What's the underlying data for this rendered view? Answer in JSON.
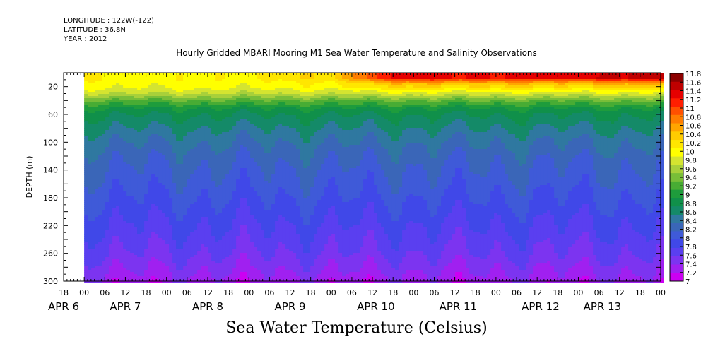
{
  "header": {
    "longitude": "LONGITUDE : 122W(-122)",
    "latitude": "LATITUDE : 36.8N",
    "year": "YEAR : 2012"
  },
  "chart_data": {
    "type": "heatmap",
    "title": "Hourly Gridded MBARI Mooring M1 Sea Water Temperature and Salinity Observations",
    "xlabel": "Sea Water Temperature (Celsius)",
    "ylabel": "DEPTH (m)",
    "x_range_hours": [
      -6,
      168
    ],
    "data_start_hour": 0,
    "y_range": [
      0,
      300
    ],
    "y_inverted": true,
    "y_ticks": [
      20,
      60,
      100,
      140,
      180,
      220,
      260,
      300
    ],
    "x_hour_ticks": [
      {
        "h": -6,
        "label": "18"
      },
      {
        "h": 0,
        "label": "00"
      },
      {
        "h": 6,
        "label": "06"
      },
      {
        "h": 12,
        "label": "12"
      },
      {
        "h": 18,
        "label": "18"
      },
      {
        "h": 24,
        "label": "00"
      },
      {
        "h": 30,
        "label": "06"
      },
      {
        "h": 36,
        "label": "12"
      },
      {
        "h": 42,
        "label": "18"
      },
      {
        "h": 48,
        "label": "00"
      },
      {
        "h": 54,
        "label": "06"
      },
      {
        "h": 60,
        "label": "12"
      },
      {
        "h": 66,
        "label": "18"
      },
      {
        "h": 72,
        "label": "00"
      },
      {
        "h": 78,
        "label": "06"
      },
      {
        "h": 84,
        "label": "12"
      },
      {
        "h": 90,
        "label": "18"
      },
      {
        "h": 96,
        "label": "00"
      },
      {
        "h": 102,
        "label": "06"
      },
      {
        "h": 108,
        "label": "12"
      },
      {
        "h": 114,
        "label": "18"
      },
      {
        "h": 120,
        "label": "00"
      },
      {
        "h": 126,
        "label": "06"
      },
      {
        "h": 132,
        "label": "12"
      },
      {
        "h": 138,
        "label": "18"
      },
      {
        "h": 144,
        "label": "00"
      },
      {
        "h": 150,
        "label": "06"
      },
      {
        "h": 156,
        "label": "12"
      },
      {
        "h": 162,
        "label": "18"
      },
      {
        "h": 168,
        "label": "00"
      }
    ],
    "x_date_labels": [
      {
        "h": -6,
        "label": "APR  6"
      },
      {
        "h": 12,
        "label": "APR  7"
      },
      {
        "h": 36,
        "label": "APR  8"
      },
      {
        "h": 60,
        "label": "APR  9"
      },
      {
        "h": 84,
        "label": "APR 10"
      },
      {
        "h": 108,
        "label": "APR 11"
      },
      {
        "h": 132,
        "label": "APR 12"
      },
      {
        "h": 150,
        "label": "APR 13"
      }
    ],
    "colorbar": {
      "levels": [
        7,
        7.2,
        7.4,
        7.6,
        7.8,
        8,
        8.2,
        8.4,
        8.6,
        8.8,
        9,
        9.2,
        9.4,
        9.6,
        9.8,
        10,
        10.2,
        10.4,
        10.6,
        10.8,
        11,
        11.2,
        11.4,
        11.6,
        11.8
      ],
      "colors": [
        "#cc00f2",
        "#a020f0",
        "#7c34f0",
        "#5a3ff0",
        "#4048e8",
        "#3f5ad8",
        "#3a66b8",
        "#2f78a0",
        "#148a68",
        "#10904a",
        "#1e9c3c",
        "#48ac34",
        "#78be38",
        "#a8d03a",
        "#d4e430",
        "#ffff00",
        "#ffe600",
        "#ffcc00",
        "#ffa500",
        "#ff7d00",
        "#ff5000",
        "#ff1e00",
        "#e60000",
        "#bf0000",
        "#8c0000"
      ]
    },
    "depth_profile": [
      {
        "depth": 10,
        "temperature": 10.15
      },
      {
        "depth": 20,
        "temperature": 10.05
      },
      {
        "depth": 30,
        "temperature": 9.8
      },
      {
        "depth": 40,
        "temperature": 9.4
      },
      {
        "depth": 50,
        "temperature": 9.0
      },
      {
        "depth": 60,
        "temperature": 8.82
      },
      {
        "depth": 80,
        "temperature": 8.6
      },
      {
        "depth": 100,
        "temperature": 8.42
      },
      {
        "depth": 120,
        "temperature": 8.28
      },
      {
        "depth": 140,
        "temperature": 8.18
      },
      {
        "depth": 160,
        "temperature": 8.1
      },
      {
        "depth": 180,
        "temperature": 8.0
      },
      {
        "depth": 200,
        "temperature": 7.9
      },
      {
        "depth": 220,
        "temperature": 7.8
      },
      {
        "depth": 240,
        "temperature": 7.7
      },
      {
        "depth": 260,
        "temperature": 7.6
      },
      {
        "depth": 280,
        "temperature": 7.45
      },
      {
        "depth": 300,
        "temperature": 7.3
      }
    ],
    "surface_trend": [
      {
        "hour": 0,
        "temperature": 10.15
      },
      {
        "hour": 24,
        "temperature": 10.1
      },
      {
        "hour": 48,
        "temperature": 10.2
      },
      {
        "hour": 72,
        "temperature": 10.4
      },
      {
        "hour": 84,
        "temperature": 11.2
      },
      {
        "hour": 96,
        "temperature": 11.5
      },
      {
        "hour": 120,
        "temperature": 11.4
      },
      {
        "hour": 144,
        "temperature": 11.5
      },
      {
        "hour": 168,
        "temperature": 11.7
      }
    ]
  }
}
